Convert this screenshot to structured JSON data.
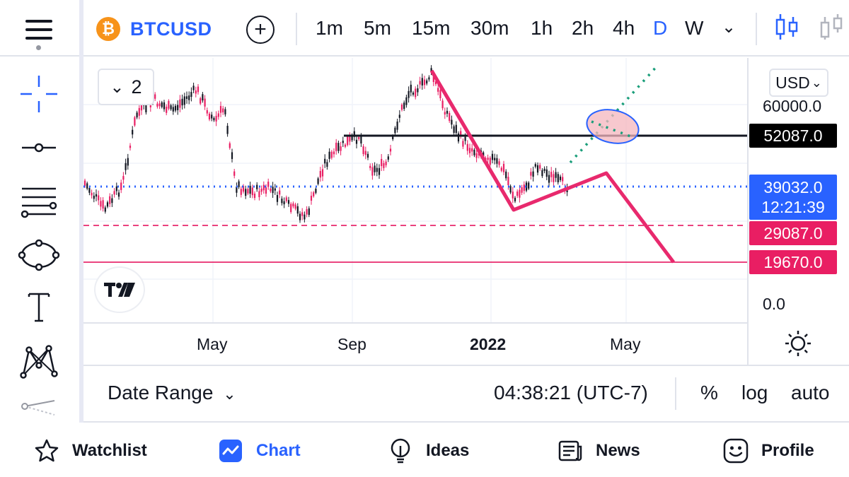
{
  "header": {
    "symbol": "BTCUSD",
    "symbol_icon": "bitcoin-icon",
    "timeframes": [
      "1m",
      "5m",
      "15m",
      "30m",
      "1h",
      "2h",
      "4h",
      "D",
      "W"
    ],
    "active_timeframe": "D"
  },
  "chart": {
    "legend_toggle_count": "2",
    "currency": "USD",
    "price_ticks": [
      "60000.0",
      "0.0"
    ],
    "time_labels": [
      "May",
      "Sep",
      "2022",
      "May"
    ],
    "price_tags": {
      "resistance": "52087.0",
      "current_price": "39032.0",
      "countdown": "12:21:39",
      "support_1": "29087.0",
      "support_2": "19670.0"
    },
    "colors": {
      "accent": "#2962ff",
      "candle_up": "#131722",
      "candle_down": "#e91e63",
      "drawing_pink": "#e8296d",
      "projection_teal": "#1a9e7a",
      "resistance_line": "#131722",
      "current_price_line": "#2962ff"
    }
  },
  "bottom_bar": {
    "date_range_label": "Date Range",
    "clock": "04:38:21 (UTC-7)",
    "percent_label": "%",
    "log_label": "log",
    "auto_label": "auto"
  },
  "nav": {
    "items": [
      {
        "label": "Watchlist",
        "icon": "star-icon"
      },
      {
        "label": "Chart",
        "icon": "chart-icon"
      },
      {
        "label": "Ideas",
        "icon": "lightbulb-icon"
      },
      {
        "label": "News",
        "icon": "newspaper-icon"
      },
      {
        "label": "Profile",
        "icon": "smiley-icon"
      }
    ],
    "active": "Chart"
  }
}
